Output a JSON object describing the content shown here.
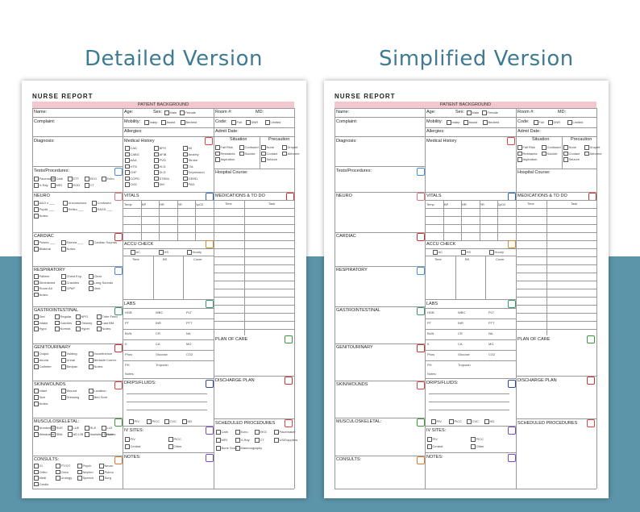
{
  "headings": {
    "left": "Detailed Version",
    "right": "Simplified Version"
  },
  "sheet": {
    "title": "NURSE REPORT",
    "patient_background": "PATIENT BACKGROUND",
    "fields": {
      "name": "Name:",
      "age": "Age:",
      "sex": "Sex:",
      "male": "Male",
      "female": "Female",
      "room": "Room #:",
      "md": "MD:",
      "complaint": "Complaint:",
      "mobility": "Mobility:",
      "indep": "Indep",
      "assist": "Assist",
      "bedrest": "Bedrest",
      "code": "Code:",
      "full": "Full",
      "dnr": "DNR",
      "limited": "Limited",
      "allergies": "Allergies:",
      "admit_date": "Admit Date:",
      "diagnosis": "Diagnosis:",
      "medical_history": "Medical History",
      "situation": "Situation",
      "precaution": "Precaution",
      "hospital_course": "Hospital Course:",
      "tests": "Tests/Procedures:"
    },
    "situation_items": [
      "Fall Risk",
      "Confused",
      "Restraints",
      "Suicide",
      "Aspiration"
    ],
    "precaution_items": [
      "None",
      "Droplet",
      "Contact",
      "Airborne",
      "Seizure"
    ],
    "medical_history_items": [
      "CAD",
      "BPH",
      "MI",
      "CABG",
      "AFIB",
      "Anxiety",
      "AAA",
      "PVD",
      "Stroke",
      "HTN",
      "HLD",
      "TIA",
      "CHF",
      "DLD",
      "Depression",
      "COPD",
      "STEMI",
      "GERD",
      "CKD",
      "DM",
      "PAD"
    ],
    "tests_items": [
      "Pacemaker",
      "Cath",
      "ETT",
      "EKG",
      "Echo",
      "X-Ray",
      "MRI",
      "EGD",
      "CT"
    ],
    "sections_left": [
      "NEURO",
      "CARDIAC",
      "RESPIRATORY",
      "GASTROINTESTINAL",
      "GENITOURINARY",
      "SKIN/WOUNDS",
      "MUSCULOSKELETAL:",
      "CONSULTS:"
    ],
    "sections_mid": [
      "VITALS",
      "ACCU CHECK",
      "LABS",
      "DRIPS/FLUIDS:",
      "IV SITES:",
      "NOTES:"
    ],
    "sections_right": [
      "MEDICATIONS & TO DO",
      "PLAN OF CARE",
      "DISCHARGE PLAN",
      "SCHEDULED PROCEDURES"
    ],
    "vitals_cols": [
      "Temp",
      "BP",
      "HR",
      "RR",
      "SpO2"
    ],
    "med_cols": [
      "Time",
      "Task"
    ],
    "accu_opts": [
      "AC",
      "HS",
      "Hourly"
    ],
    "accu_cols": [
      "Time",
      "BS",
      "Cover"
    ],
    "labs": [
      "HGB",
      "WBC",
      "PLT",
      "PT",
      "INR",
      "PTT",
      "BUN",
      "CR",
      "NA",
      "K",
      "CA",
      "MG",
      "Phos",
      "Glucose",
      "CO2",
      "PH",
      "Troponin",
      ""
    ],
    "labs_notes": "Notes:",
    "iv_types": [
      "PIV",
      "PICC",
      "CVC",
      "HD"
    ],
    "iv_sites": [
      "PIV",
      "PICC",
      "Central",
      "Other"
    ],
    "sched_items": [
      "Cath",
      "Echo",
      "EKG",
      "Pacemaker",
      "MRI",
      "X-Ray",
      "CT",
      "US/Dopplers",
      "Bone Scan",
      "Mammography"
    ],
    "neuro_items": [
      "A&O x ___",
      "Unconscious",
      "Confused",
      "Pupils ___",
      "Reflex ___",
      "RASS ___",
      "Notes:"
    ],
    "cardiac_items": [
      "Pulses ___",
      "Edema ___",
      "Cardiac Sounds",
      "Bilateral",
      "Notes:"
    ],
    "resp_items": [
      "Pattern",
      "Chest Exp.",
      "Clear",
      "Diminished",
      "Crackles",
      "Lung Sounds",
      "Room Air",
      "CPAP",
      "Vent",
      "Notes:"
    ],
    "gi_items": [
      "Diet",
      "Regular",
      "NPO",
      "Tube Feed",
      "Intake",
      "Calories",
      "Ostomy",
      "Last BM",
      "Hypo",
      "Normal",
      "Hyper",
      "Notes:"
    ],
    "gu_items": [
      "Output",
      "Voiding",
      "Incontinence",
      "Anuria",
      "Urinal",
      "Bedside Comm.",
      "Catheter",
      "Bedpan",
      "Notes:"
    ],
    "skin_items": [
      "Intact",
      "Wound",
      "Location",
      "Size",
      "Dressing",
      "Bed Sore",
      "Notes:"
    ],
    "msk_items": [
      "Numbness",
      "RUE",
      "LUE",
      "RLE",
      "LLE",
      "Weakness",
      "SBA",
      "AD LIB",
      "Assisting Device",
      "Notes:"
    ],
    "consult_items": [
      "GI",
      "PT/OT",
      "Psych",
      "Neuro",
      "Ortho",
      "Onco",
      "Nephro",
      "Pulmo",
      "Medi",
      "Urology",
      "Speech",
      "Surg",
      "Cardio"
    ],
    "colors": {
      "bg_top": "#ffffff",
      "bg_bottom": "#5c94a9",
      "heading": "#3e7b92",
      "pink_band": "#f3c7cf"
    }
  }
}
